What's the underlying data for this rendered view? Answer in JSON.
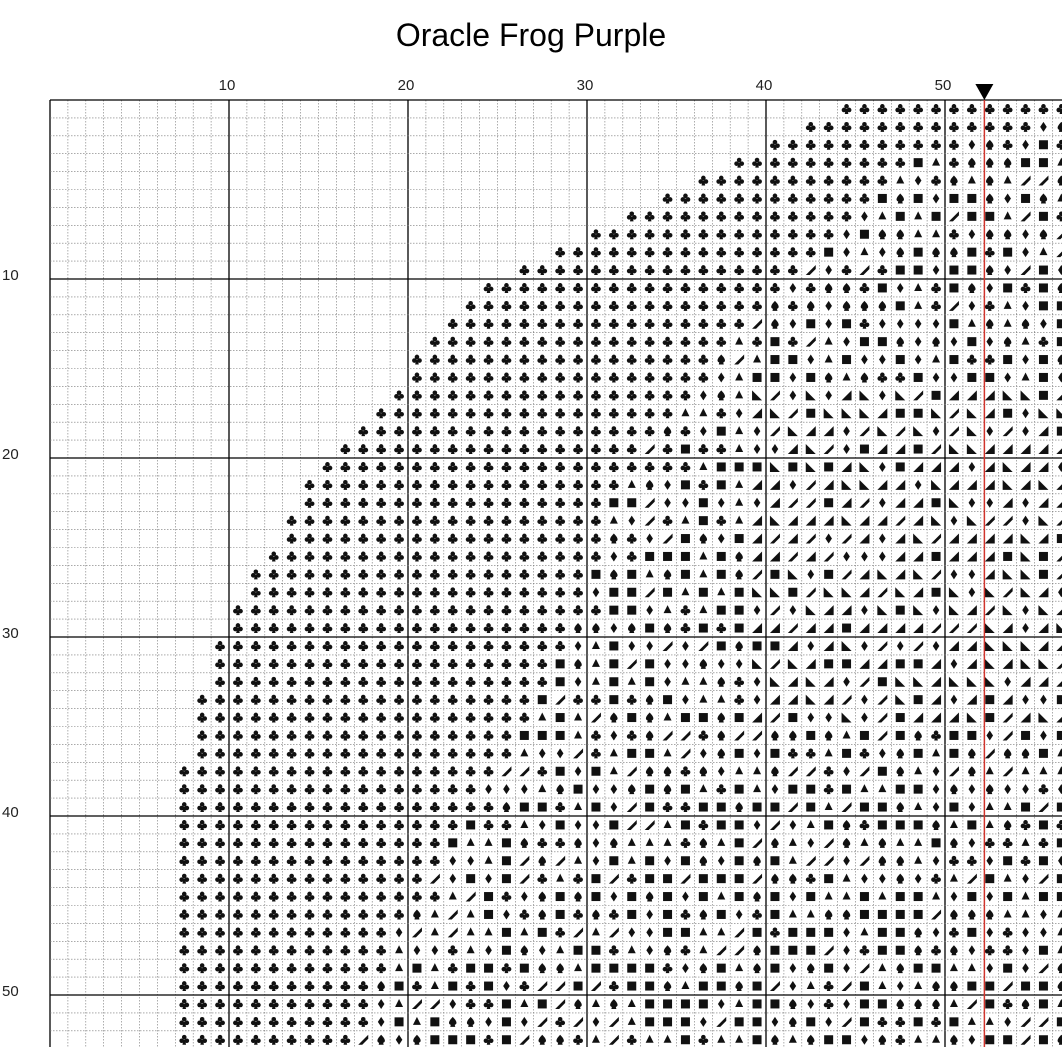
{
  "header": {
    "title": "Oracle Frog Purple"
  },
  "column_labels": [
    10,
    20,
    30,
    40,
    50
  ],
  "row_labels": [
    10,
    20,
    30,
    40,
    50
  ]
}
